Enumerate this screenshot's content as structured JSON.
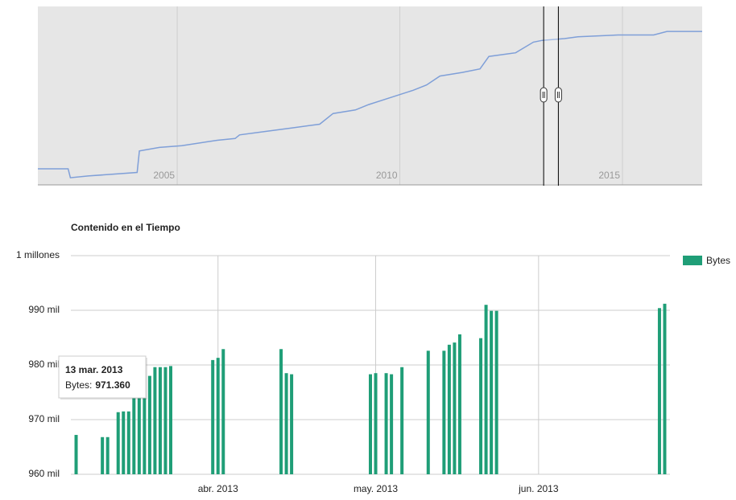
{
  "chart_data": [
    {
      "type": "line",
      "x": [
        2001.87,
        2002.55,
        2002.6,
        2003.0,
        2004.1,
        2004.15,
        2004.6,
        2005.1,
        2005.9,
        2006.3,
        2006.4,
        2007.0,
        2007.6,
        2008.2,
        2008.5,
        2009.0,
        2009.3,
        2009.8,
        2010.3,
        2010.6,
        2010.9,
        2011.4,
        2011.8,
        2012.0,
        2012.6,
        2013.0,
        2013.2,
        2013.7,
        2014.0,
        2014.9,
        2015.7,
        2016.0,
        2016.3,
        2016.79
      ],
      "values": [
        9,
        9,
        4,
        5,
        7,
        19,
        21,
        22,
        25,
        26,
        28,
        30,
        32,
        34,
        40,
        42,
        45,
        49,
        53,
        56,
        61,
        63,
        65,
        72,
        74,
        80,
        81,
        82,
        83,
        84,
        84,
        86,
        86,
        86
      ],
      "color": "#7f9fd8",
      "xlim": [
        2001.87,
        2016.79
      ],
      "xticks": [
        2005,
        2010,
        2015
      ],
      "ylim": [
        0,
        100
      ],
      "range": [
        2013.23,
        2013.56
      ]
    },
    {
      "type": "bar",
      "title": "Contenido en el Tiempo",
      "x": [
        "2013-03-05",
        "2013-03-10",
        "2013-03-11",
        "2013-03-13",
        "2013-03-14",
        "2013-03-15",
        "2013-03-16",
        "2013-03-17",
        "2013-03-18",
        "2013-03-19",
        "2013-03-20",
        "2013-03-21",
        "2013-03-22",
        "2013-03-23",
        "2013-03-31",
        "2013-04-01",
        "2013-04-02",
        "2013-04-13",
        "2013-04-14",
        "2013-04-15",
        "2013-04-30",
        "2013-05-01",
        "2013-05-03",
        "2013-05-04",
        "2013-05-06",
        "2013-05-11",
        "2013-05-14",
        "2013-05-15",
        "2013-05-16",
        "2013-05-17",
        "2013-05-21",
        "2013-05-22",
        "2013-05-23",
        "2013-05-24",
        "2013-06-24",
        "2013-06-25"
      ],
      "series": [
        {
          "name": "Bytes",
          "color": "#1f9e77",
          "values": [
            967200,
            966800,
            966800,
            971360,
            971500,
            971500,
            974000,
            976000,
            977000,
            978000,
            979600,
            979600,
            979600,
            979800,
            980900,
            981300,
            982900,
            982900,
            978500,
            978300,
            978300,
            978500,
            978500,
            978300,
            979600,
            982600,
            982600,
            983700,
            984100,
            985600,
            984900,
            991000,
            989900,
            989900,
            990400,
            991200
          ]
        }
      ],
      "xlim": [
        "2013-03-04",
        "2013-06-26"
      ],
      "xticks": [
        {
          "value": "2013-04-01",
          "label": "abr. 2013"
        },
        {
          "value": "2013-05-01",
          "label": "may. 2013"
        },
        {
          "value": "2013-06-01",
          "label": "jun. 2013"
        }
      ],
      "ylim": [
        960000,
        1000000
      ],
      "yticks": [
        {
          "value": 960000,
          "label": "960 mil"
        },
        {
          "value": 970000,
          "label": "970 mil"
        },
        {
          "value": 980000,
          "label": "980 mil"
        },
        {
          "value": 990000,
          "label": "990 mil"
        },
        {
          "value": 1000000,
          "label": "1 millones"
        }
      ],
      "grid": true,
      "legend": "right",
      "tooltip": {
        "date": "13 mar. 2013",
        "label": "Bytes:",
        "value": "971.360"
      }
    }
  ]
}
